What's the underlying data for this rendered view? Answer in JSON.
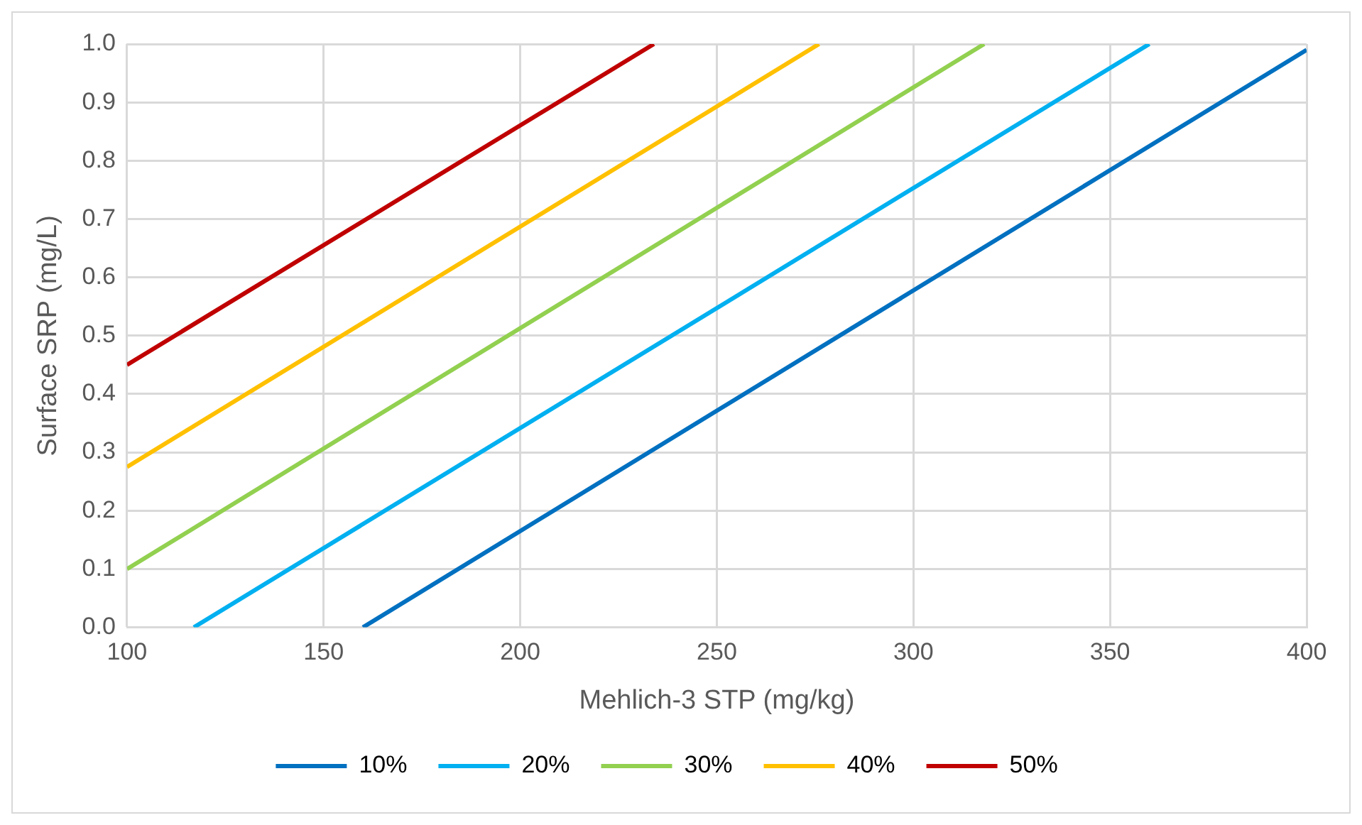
{
  "chart_data": {
    "type": "line",
    "xlabel": "Mehlich-3 STP (mg/kg)",
    "ylabel": "Surface SRP (mg/L)",
    "series": [
      {
        "name": "10%",
        "color": "#0070c0",
        "x": [
          160,
          400
        ],
        "values": [
          0,
          0.99
        ]
      },
      {
        "name": "20%",
        "color": "#00b0f0",
        "x": [
          117,
          360
        ],
        "values": [
          0,
          1
        ]
      },
      {
        "name": "30%",
        "color": "#92d050",
        "x": [
          100,
          318
        ],
        "values": [
          0.1,
          1
        ]
      },
      {
        "name": "40%",
        "color": "#ffc000",
        "x": [
          100,
          276
        ],
        "values": [
          0.275,
          1
        ]
      },
      {
        "name": "50%",
        "color": "#c00000",
        "x": [
          100,
          234
        ],
        "values": [
          0.45,
          1
        ]
      }
    ],
    "xlim": [
      100,
      400
    ],
    "xticks": [
      100,
      150,
      200,
      250,
      300,
      350,
      400
    ],
    "ylim": [
      0,
      1
    ],
    "yticks": [
      {
        "value": 0,
        "label": "0.0"
      },
      {
        "value": 0.1,
        "label": "0.1"
      },
      {
        "value": 0.2,
        "label": "0.2"
      },
      {
        "value": 0.3,
        "label": "0.3"
      },
      {
        "value": 0.4,
        "label": "0.4"
      },
      {
        "value": 0.5,
        "label": "0.5"
      },
      {
        "value": 0.6,
        "label": "0.6"
      },
      {
        "value": 0.7,
        "label": "0.7"
      },
      {
        "value": 0.8,
        "label": "0.8"
      },
      {
        "value": 0.9,
        "label": "0.9"
      },
      {
        "value": 1,
        "label": "1.0"
      }
    ],
    "grid": true,
    "legend": "bottom",
    "marker": "none",
    "line_style": "solid"
  }
}
